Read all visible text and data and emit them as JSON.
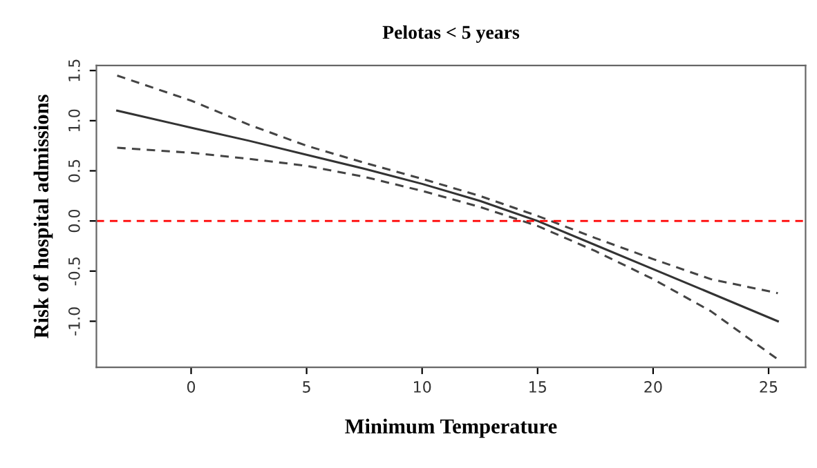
{
  "chart_data": {
    "type": "line",
    "title": "Pelotas < 5 years",
    "xlabel": "Minimum Temperature",
    "ylabel": "Risk of hospital admissions",
    "x": [
      -3.2,
      0,
      2.5,
      5,
      7.5,
      10,
      12.5,
      15,
      17.5,
      20,
      22.5,
      25.4
    ],
    "series": [
      {
        "color": "#333333",
        "line_style": "solid",
        "values": [
          1.1,
          0.93,
          0.8,
          0.66,
          0.52,
          0.37,
          0.2,
          0.0,
          -0.24,
          -0.48,
          -0.72,
          -1.0
        ]
      },
      {
        "color": "#444444",
        "line_style": "dashed",
        "values": [
          1.45,
          1.2,
          0.96,
          0.75,
          0.58,
          0.42,
          0.25,
          0.05,
          -0.17,
          -0.38,
          -0.58,
          -0.72
        ]
      },
      {
        "color": "#444444",
        "line_style": "dashed",
        "values": [
          0.73,
          0.68,
          0.62,
          0.55,
          0.44,
          0.3,
          0.14,
          -0.05,
          -0.3,
          -0.58,
          -0.9,
          -1.38
        ]
      }
    ],
    "xlim": [
      -4.1,
      26.6
    ],
    "ylim": [
      -1.46,
      1.55
    ],
    "xticks": [
      0,
      5,
      10,
      15,
      20,
      25
    ],
    "yticks": [
      {
        "value": -1,
        "label": "-1.0"
      },
      {
        "value": -0.5,
        "label": "-0.5"
      },
      {
        "value": 0,
        "label": "0.0"
      },
      {
        "value": 0.5,
        "label": "0.5"
      },
      {
        "value": 1,
        "label": "1.0"
      },
      {
        "value": 1.5,
        "label": "1.5"
      }
    ],
    "ref_lines": [
      {
        "axis": "y",
        "value": 0,
        "color": "#ff0000",
        "line_style": "dashed"
      }
    ],
    "grid": false,
    "legend": false
  }
}
